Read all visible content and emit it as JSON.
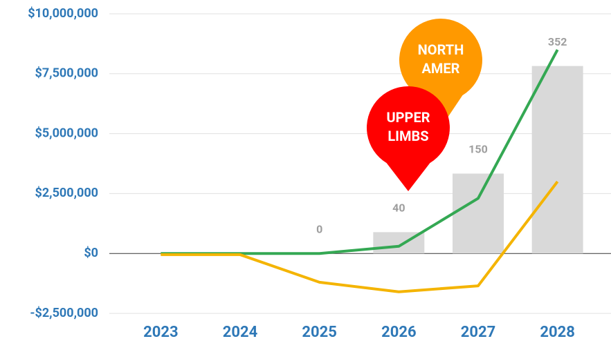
{
  "chart_data": {
    "type": "combo",
    "categories": [
      "2023",
      "2024",
      "2025",
      "2026",
      "2027",
      "2028"
    ],
    "bars": {
      "axis": "y2",
      "color": "#d9d9d9",
      "label_color": "#9e9e9e",
      "values": [
        null,
        null,
        0,
        40,
        150,
        352
      ]
    },
    "series": [
      {
        "color": "#34a853",
        "values": [
          0,
          0,
          0,
          300000,
          2300000,
          8500000
        ]
      },
      {
        "color": "#f4b400",
        "values": [
          -50000,
          -50000,
          -1200000,
          -1600000,
          -1350000,
          3000000
        ]
      }
    ],
    "ylim": [
      -2500000,
      10000000
    ],
    "yticks": [
      {
        "value": -2500000,
        "label": "-$2,500,000"
      },
      {
        "value": 0,
        "label": "$0"
      },
      {
        "value": 2500000,
        "label": "$2,500,000"
      },
      {
        "value": 5000000,
        "label": "$5,000,000"
      },
      {
        "value": 7500000,
        "label": "$7,500,000"
      },
      {
        "value": 10000000,
        "label": "$10,000,000"
      }
    ],
    "y2lim": [
      -112.5,
      450
    ],
    "grid": true,
    "annotations": [
      {
        "lines": [
          "NORTH",
          "AMER"
        ],
        "color": "#ff9900"
      },
      {
        "lines": [
          "UPPER",
          "LIMBS"
        ],
        "color": "#ff0000"
      }
    ]
  }
}
